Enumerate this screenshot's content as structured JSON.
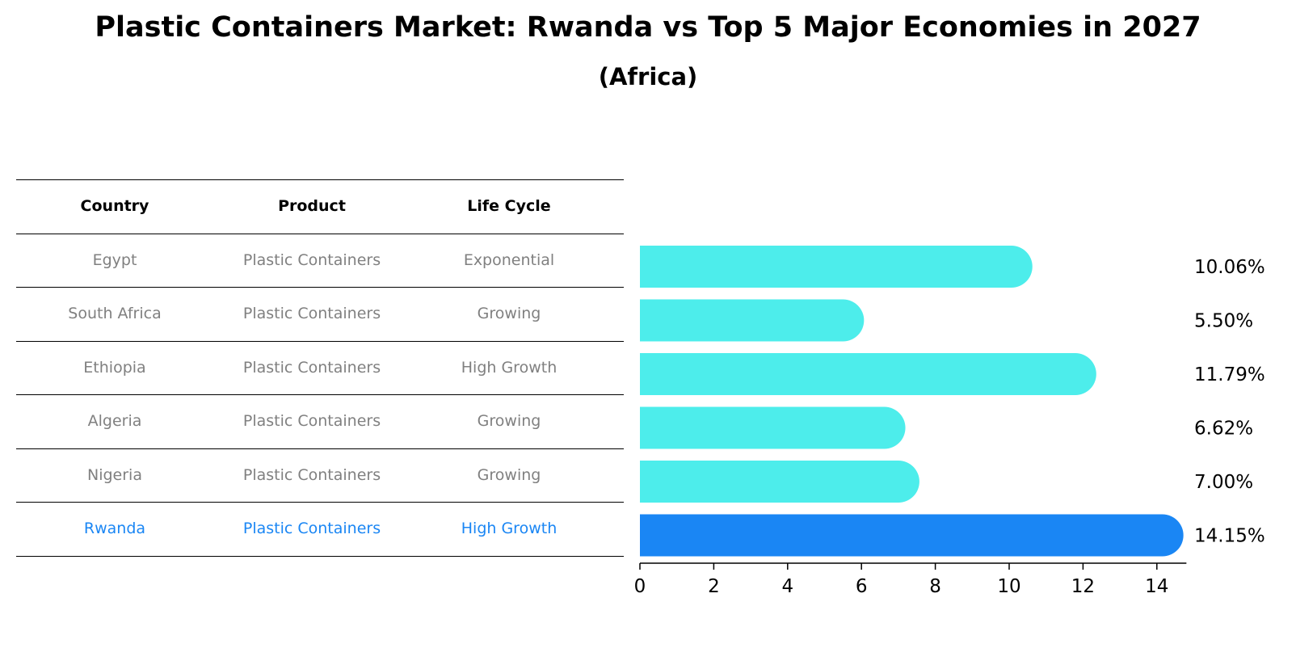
{
  "title": "Plastic Containers Market: Rwanda vs Top 5 Major Economies in 2027",
  "subtitle": "(Africa)",
  "colors": {
    "bar": "#4DEDEB",
    "highlight_bar": "#1A86F4",
    "row_text": "#808080",
    "highlight_text": "#1A86F4"
  },
  "table": {
    "headers": [
      "Country",
      "Product",
      "Life Cycle"
    ],
    "rows": [
      {
        "country": "Egypt",
        "product": "Plastic Containers",
        "life_cycle": "Exponential"
      },
      {
        "country": "South Africa",
        "product": "Plastic Containers",
        "life_cycle": "Growing"
      },
      {
        "country": "Ethiopia",
        "product": "Plastic Containers",
        "life_cycle": "High Growth"
      },
      {
        "country": "Algeria",
        "product": "Plastic Containers",
        "life_cycle": "Growing"
      },
      {
        "country": "Nigeria",
        "product": "Plastic Containers",
        "life_cycle": "Growing"
      },
      {
        "country": "Rwanda",
        "product": "Plastic Containers",
        "life_cycle": "High Growth"
      }
    ],
    "highlight_row": 5
  },
  "chart_data": {
    "type": "bar",
    "orientation": "horizontal",
    "title": "Plastic Containers Market: Rwanda vs Top 5 Major Economies in 2027",
    "subtitle": "(Africa)",
    "categories": [
      "Egypt",
      "South Africa",
      "Ethiopia",
      "Algeria",
      "Nigeria",
      "Rwanda"
    ],
    "values": [
      10.06,
      5.5,
      11.79,
      6.62,
      7.0,
      14.15
    ],
    "value_labels": [
      "10.06%",
      "5.50%",
      "11.79%",
      "6.62%",
      "7.00%",
      "14.15%"
    ],
    "highlight": "Rwanda",
    "xlim": [
      0,
      14.8
    ],
    "xticks": [
      0,
      2,
      4,
      6,
      8,
      10,
      12,
      14
    ],
    "xlabel": "",
    "ylabel": "",
    "grid": false
  }
}
